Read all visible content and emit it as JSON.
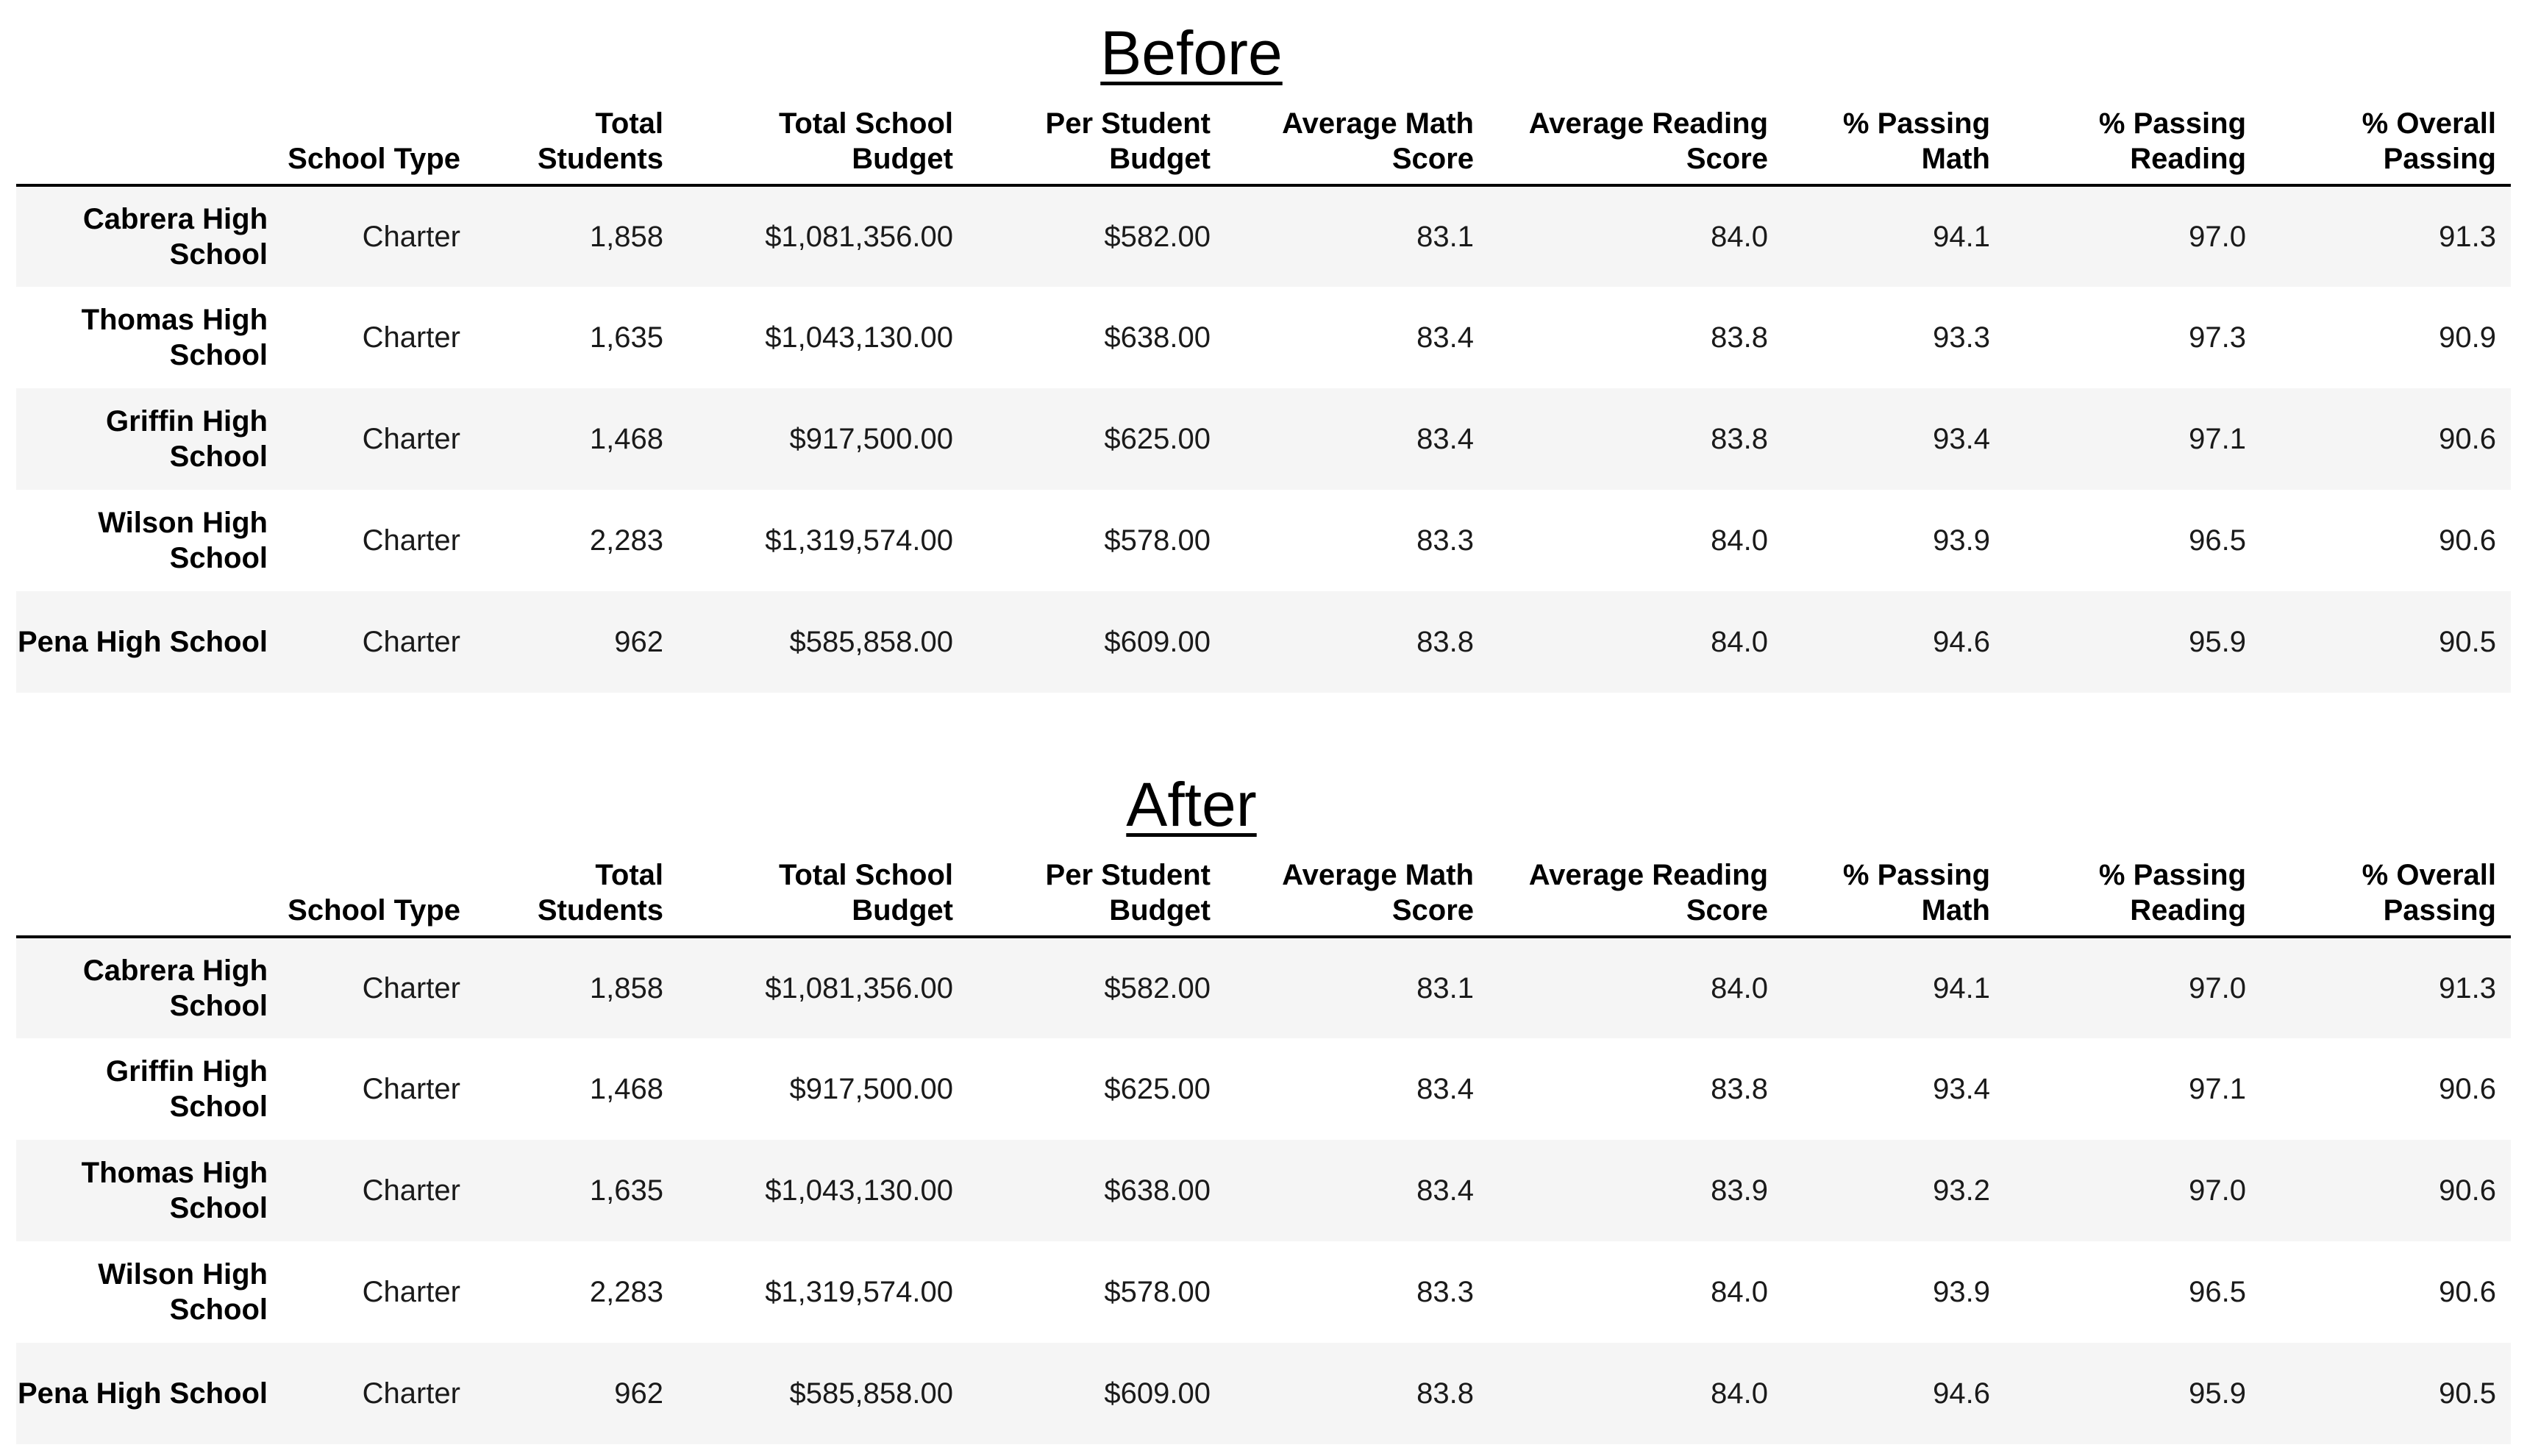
{
  "before": {
    "title": "Before",
    "columns": [
      "School Type",
      "Total Students",
      "Total School Budget",
      "Per Student Budget",
      "Average Math Score",
      "Average Reading Score",
      "% Passing Math",
      "% Passing Reading",
      "% Overall Passing"
    ],
    "rows": [
      {
        "name": "Cabrera High School",
        "type": "Charter",
        "students": "1,858",
        "budget": "$1,081,356.00",
        "per_student": "$582.00",
        "avg_math": "83.1",
        "avg_reading": "84.0",
        "pass_math": "94.1",
        "pass_reading": "97.0",
        "overall": "91.3"
      },
      {
        "name": "Thomas High School",
        "type": "Charter",
        "students": "1,635",
        "budget": "$1,043,130.00",
        "per_student": "$638.00",
        "avg_math": "83.4",
        "avg_reading": "83.8",
        "pass_math": "93.3",
        "pass_reading": "97.3",
        "overall": "90.9"
      },
      {
        "name": "Griffin High School",
        "type": "Charter",
        "students": "1,468",
        "budget": "$917,500.00",
        "per_student": "$625.00",
        "avg_math": "83.4",
        "avg_reading": "83.8",
        "pass_math": "93.4",
        "pass_reading": "97.1",
        "overall": "90.6"
      },
      {
        "name": "Wilson High School",
        "type": "Charter",
        "students": "2,283",
        "budget": "$1,319,574.00",
        "per_student": "$578.00",
        "avg_math": "83.3",
        "avg_reading": "84.0",
        "pass_math": "93.9",
        "pass_reading": "96.5",
        "overall": "90.6"
      },
      {
        "name": "Pena High School",
        "type": "Charter",
        "students": "962",
        "budget": "$585,858.00",
        "per_student": "$609.00",
        "avg_math": "83.8",
        "avg_reading": "84.0",
        "pass_math": "94.6",
        "pass_reading": "95.9",
        "overall": "90.5"
      }
    ]
  },
  "after": {
    "title": "After",
    "columns": [
      "School Type",
      "Total Students",
      "Total School Budget",
      "Per Student Budget",
      "Average Math Score",
      "Average Reading Score",
      "% Passing Math",
      "% Passing Reading",
      "% Overall Passing"
    ],
    "rows": [
      {
        "name": "Cabrera High School",
        "type": "Charter",
        "students": "1,858",
        "budget": "$1,081,356.00",
        "per_student": "$582.00",
        "avg_math": "83.1",
        "avg_reading": "84.0",
        "pass_math": "94.1",
        "pass_reading": "97.0",
        "overall": "91.3"
      },
      {
        "name": "Griffin High School",
        "type": "Charter",
        "students": "1,468",
        "budget": "$917,500.00",
        "per_student": "$625.00",
        "avg_math": "83.4",
        "avg_reading": "83.8",
        "pass_math": "93.4",
        "pass_reading": "97.1",
        "overall": "90.6"
      },
      {
        "name": "Thomas High School",
        "type": "Charter",
        "students": "1,635",
        "budget": "$1,043,130.00",
        "per_student": "$638.00",
        "avg_math": "83.4",
        "avg_reading": "83.9",
        "pass_math": "93.2",
        "pass_reading": "97.0",
        "overall": "90.6"
      },
      {
        "name": "Wilson High School",
        "type": "Charter",
        "students": "2,283",
        "budget": "$1,319,574.00",
        "per_student": "$578.00",
        "avg_math": "83.3",
        "avg_reading": "84.0",
        "pass_math": "93.9",
        "pass_reading": "96.5",
        "overall": "90.6"
      },
      {
        "name": "Pena High School",
        "type": "Charter",
        "students": "962",
        "budget": "$585,858.00",
        "per_student": "$609.00",
        "avg_math": "83.8",
        "avg_reading": "84.0",
        "pass_math": "94.6",
        "pass_reading": "95.9",
        "overall": "90.5"
      }
    ]
  }
}
